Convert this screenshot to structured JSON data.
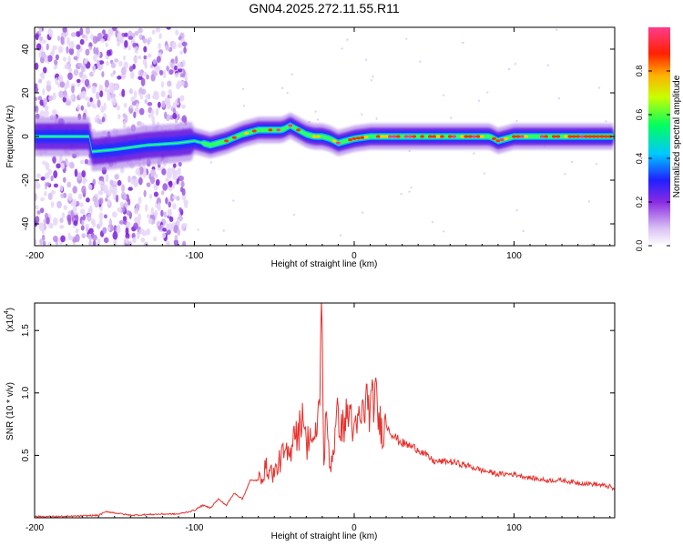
{
  "title": "GN04.2025.272.11.55.R11",
  "chart_data": [
    {
      "type": "heatmap",
      "title": "GN04.2025.272.11.55.R11",
      "xlabel": "Height of straight line (km)",
      "ylabel": "Frequency (Hz)",
      "xlim": [
        -200,
        163
      ],
      "ylim": [
        -50,
        50
      ],
      "xticks": [
        -200,
        -100,
        0,
        100
      ],
      "yticks": [
        -40,
        -20,
        0,
        20,
        40
      ],
      "colorbar": {
        "label": "Normalized spectral amplitude",
        "range": [
          0.0,
          1.0
        ],
        "ticks": [
          "0.0",
          "0.2",
          "0.4",
          "0.6",
          "0.8"
        ],
        "colors": [
          "#ffffff",
          "#d8c0f4",
          "#8a2be2",
          "#2020ff",
          "#00c8ff",
          "#00ff60",
          "#c8ff00",
          "#ffb000",
          "#ff2000",
          "#ff3c8c"
        ]
      },
      "ridge": {
        "x": [
          -165,
          -150,
          -130,
          -110,
          -100,
          -90,
          -80,
          -70,
          -60,
          -50,
          -45,
          -40,
          -35,
          -30,
          -25,
          -20,
          -15,
          -10,
          -5,
          0,
          10,
          30,
          60,
          85,
          90,
          100,
          130,
          163
        ],
        "y": [
          -7,
          -6,
          -4,
          -3,
          -2,
          -4,
          -2,
          1,
          3,
          3,
          3,
          5,
          3,
          1,
          0,
          0,
          -1,
          -3,
          -2,
          -1,
          0,
          0,
          0,
          0,
          -2,
          0,
          0,
          0
        ]
      },
      "noise_region": {
        "x_from": -200,
        "x_to": -105
      }
    },
    {
      "type": "line",
      "xlabel": "Height of straight line (km)",
      "ylabel": "SNR (10 * v/v)",
      "y_scale_label": "(x10",
      "y_scale_exponent": "4",
      "xlim": [
        -200,
        163
      ],
      "ylim": [
        0,
        1.72
      ],
      "xticks": [
        -200,
        -100,
        0,
        100
      ],
      "yticks": [
        "0.5",
        "1.0",
        "1.5"
      ],
      "color": "#e8302c",
      "x": [
        -200,
        -180,
        -160,
        -155,
        -140,
        -120,
        -110,
        -100,
        -95,
        -90,
        -85,
        -80,
        -75,
        -70,
        -65,
        -60,
        -55,
        -50,
        -45,
        -40,
        -38,
        -35,
        -32,
        -30,
        -28,
        -25,
        -22,
        -20,
        -19,
        -18,
        -17,
        -15,
        -12,
        -10,
        -8,
        -5,
        -2,
        0,
        3,
        5,
        8,
        10,
        13,
        15,
        18,
        20,
        25,
        30,
        40,
        50,
        60,
        70,
        80,
        90,
        100,
        110,
        120,
        130,
        140,
        150,
        160,
        163
      ],
      "y": [
        0.01,
        0.01,
        0.02,
        0.05,
        0.02,
        0.03,
        0.03,
        0.06,
        0.1,
        0.08,
        0.15,
        0.1,
        0.2,
        0.15,
        0.3,
        0.3,
        0.4,
        0.35,
        0.5,
        0.5,
        0.75,
        0.65,
        0.9,
        0.55,
        0.7,
        0.55,
        0.9,
        1.72,
        0.4,
        0.7,
        0.75,
        0.4,
        0.65,
        0.85,
        0.7,
        0.8,
        0.85,
        0.65,
        0.78,
        0.82,
        0.95,
        0.85,
        1.0,
        0.8,
        0.7,
        0.75,
        0.65,
        0.6,
        0.55,
        0.45,
        0.45,
        0.42,
        0.38,
        0.35,
        0.35,
        0.32,
        0.3,
        0.3,
        0.28,
        0.27,
        0.25,
        0.22
      ]
    }
  ]
}
